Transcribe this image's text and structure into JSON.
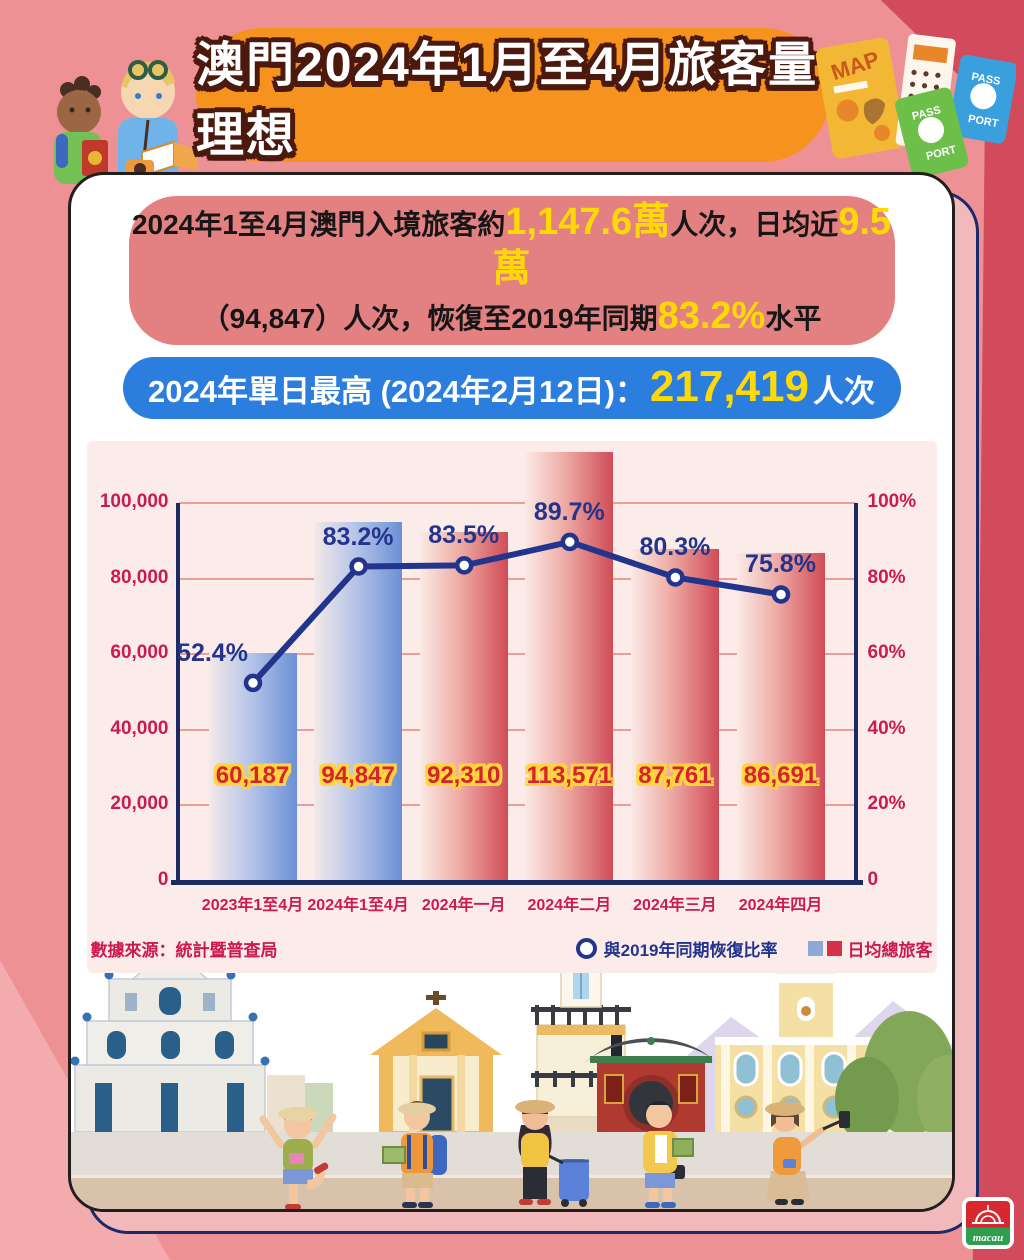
{
  "header": {
    "title": "澳門2024年1月至4月旅客量理想"
  },
  "summary": {
    "line1_prefix": "2024年1至4月澳門入境旅客約",
    "line1_total": "1,147.6萬",
    "line1_mid": "人次，日均近",
    "line1_daily": "9.5萬",
    "line2_prefix": "（94,847）人次，恢復至2019年同期",
    "line2_pct": "83.2%",
    "line2_suffix": "水平"
  },
  "peak": {
    "prefix": "2024年單日最高 (2024年2月12日)：",
    "value": "217,419",
    "suffix": "人次"
  },
  "chart_data": {
    "type": "bar+line",
    "categories": [
      "2023年1至4月",
      "2024年1至4月",
      "2024年一月",
      "2024年二月",
      "2024年三月",
      "2024年四月"
    ],
    "series": [
      {
        "name": "日均總旅客",
        "type": "bar",
        "values": [
          60187,
          94847,
          92310,
          113571,
          87761,
          86691
        ],
        "value_labels": [
          "60,187",
          "94,847",
          "92,310",
          "113,571",
          "87,761",
          "86,691"
        ],
        "bar_styles": [
          "blue",
          "blue",
          "red",
          "red",
          "red",
          "red"
        ]
      },
      {
        "name": "與2019年同期恢復比率",
        "type": "line",
        "values": [
          52.4,
          83.2,
          83.5,
          89.7,
          80.3,
          75.8
        ],
        "value_labels": [
          "52.4%",
          "83.2%",
          "83.5%",
          "89.7%",
          "80.3%",
          "75.8%"
        ]
      }
    ],
    "left_axis": {
      "ticks": [
        "0",
        "20,000",
        "40,000",
        "60,000",
        "80,000",
        "100,000"
      ],
      "max": 100000
    },
    "right_axis": {
      "ticks": [
        "0",
        "20%",
        "40%",
        "60%",
        "80%",
        "100%"
      ],
      "max": 100
    },
    "grid": true,
    "legend_position": "bottom-right",
    "source": "數據來源：統計暨普查局",
    "legend_line": "與2019年同期恢復比率",
    "legend_bar": "日均總旅客"
  },
  "decorations": {
    "map_label": "MAP",
    "passport_top": "PASS",
    "passport_bottom": "PORT"
  },
  "footer": {
    "logo_text": "macau"
  },
  "colors": {
    "accent_orange": "#f6921e",
    "summary_banner": "#e28082",
    "peak_banner": "#2b7ede",
    "highlight_yellow": "#ffd903",
    "axis_navy": "#1b2a63",
    "line_navy": "#23348c",
    "crimson": "#cb1a4f",
    "value_red": "#d6232e",
    "bar_blue": "#6b90d6",
    "bar_red": "#d04c57",
    "bg_pink": "#ee9195",
    "bg_dark_red": "#d14b5c",
    "panel_pink": "#fbecea"
  }
}
